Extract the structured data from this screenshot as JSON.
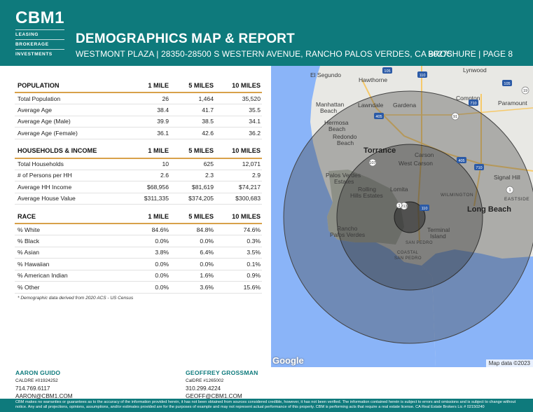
{
  "brand": {
    "logo_main": "CBM1",
    "logo_lines": [
      "LEASING",
      "BROKERAGE",
      "INVESTMENTS"
    ]
  },
  "header": {
    "title": "DEMOGRAPHICS MAP & REPORT",
    "subtitle": "WESTMONT PLAZA | 28350-28500 S WESTERN AVENUE, RANCHO PALOS VERDES, CA 90275",
    "page_label": "BROCHURE | PAGE 8"
  },
  "population": {
    "headers": [
      "POPULATION",
      "1 MILE",
      "5 MILES",
      "10 MILES"
    ],
    "rows": [
      [
        "Total Population",
        "26",
        "1,464",
        "35,520"
      ],
      [
        "Average Age",
        "38.4",
        "41.7",
        "35.5"
      ],
      [
        "Average Age (Male)",
        "39.9",
        "38.5",
        "34.1"
      ],
      [
        "Average Age (Female)",
        "36.1",
        "42.6",
        "36.2"
      ]
    ]
  },
  "households": {
    "headers": [
      "HOUSEHOLDS & INCOME",
      "1 MILE",
      "5 MILES",
      "10 MILES"
    ],
    "rows": [
      [
        "Total Households",
        "10",
        "625",
        "12,071"
      ],
      [
        "# of Persons per HH",
        "2.6",
        "2.3",
        "2.9"
      ],
      [
        "Average HH Income",
        "$68,956",
        "$81,619",
        "$74,217"
      ],
      [
        "Average House Value",
        "$311,335",
        "$374,205",
        "$300,683"
      ]
    ]
  },
  "race": {
    "headers": [
      "RACE",
      "1 MILE",
      "5 MILES",
      "10 MILES"
    ],
    "rows": [
      [
        "% White",
        "84.6%",
        "84.8%",
        "74.6%"
      ],
      [
        "% Black",
        "0.0%",
        "0.0%",
        "0.3%"
      ],
      [
        "% Asian",
        "3.8%",
        "6.4%",
        "3.5%"
      ],
      [
        "% Hawaiian",
        "0.0%",
        "0.0%",
        "0.1%"
      ],
      [
        "% American Indian",
        "0.0%",
        "1.6%",
        "0.9%"
      ],
      [
        "% Other",
        "0.0%",
        "3.6%",
        "15.6%"
      ]
    ]
  },
  "footnote": "* Demographic data derived from 2020 ACS - US Census",
  "map": {
    "labels": {
      "el_segundo": "El Segundo",
      "hawthorne": "Hawthorne",
      "lynwood": "Lynwood",
      "manhattan": "Manhattan",
      "manhattan2": "Beach",
      "lawndale": "Lawndale",
      "gardena": "Gardena",
      "compton": "Compton",
      "paramount": "Paramount",
      "hermosa": "Hermosa",
      "hermosa2": "Beach",
      "redondo": "Redondo",
      "redondo2": "Beach",
      "torrance": "Torrance",
      "carson": "Carson",
      "west_carson": "West Carson",
      "pv_estates": "Palos Verdes",
      "pv_estates2": "Estates",
      "signal_hill": "Signal Hill",
      "rolling": "Rolling",
      "rolling2": "Hills Estates",
      "lomita": "Lomita",
      "wilmington": "WILMINGTON",
      "eastside": "EASTSIDE",
      "long_beach": "Long Beach",
      "rancho": "Rancho",
      "rancho2": "Palos Verdes",
      "terminal": "Terminal",
      "terminal2": "Island",
      "san_pedro": "SAN PEDRO",
      "coastal": "COASTAL",
      "coastal2": "SAN PEDRO"
    },
    "shields": [
      "105",
      "110",
      "105",
      "19",
      "405",
      "710",
      "91",
      "107",
      "405",
      "710",
      "1",
      "213",
      "110",
      "1"
    ],
    "google": "Google",
    "map_data": "Map data ©2023",
    "colors": {
      "water": "#8ab4f8",
      "land": "#e8e8e4",
      "ring": "#555555"
    }
  },
  "agents": [
    {
      "name": "AARON GUIDO",
      "license": "CALDRE #01924252",
      "phone": "714.769.6117",
      "email": "AARON@CBM1.COM"
    },
    {
      "name": "GEOFFREY GROSSMAN",
      "license": "CalDRE #1265002",
      "phone": "310.299.4224",
      "email": "GEOFF@CBM1.COM"
    }
  ],
  "disclaimer": "CBM makes no warranties or guarantees as to the accuracy of the information provided herein, it has not been obtained from sources considered credible, however, it has not been verified. The information contained herein is subject to errors and omissions and is subject to change without notice. Any and all projections, opinions, assumptions, and/or estimates provided are for the purposes of example and may not represent actual performance of this property. CBM is performing acts that require a real estate license. CA Real Estate Brokers Lic # 02150240",
  "theme": {
    "teal": "#0e7a7c",
    "gold": "#d8a14a"
  }
}
